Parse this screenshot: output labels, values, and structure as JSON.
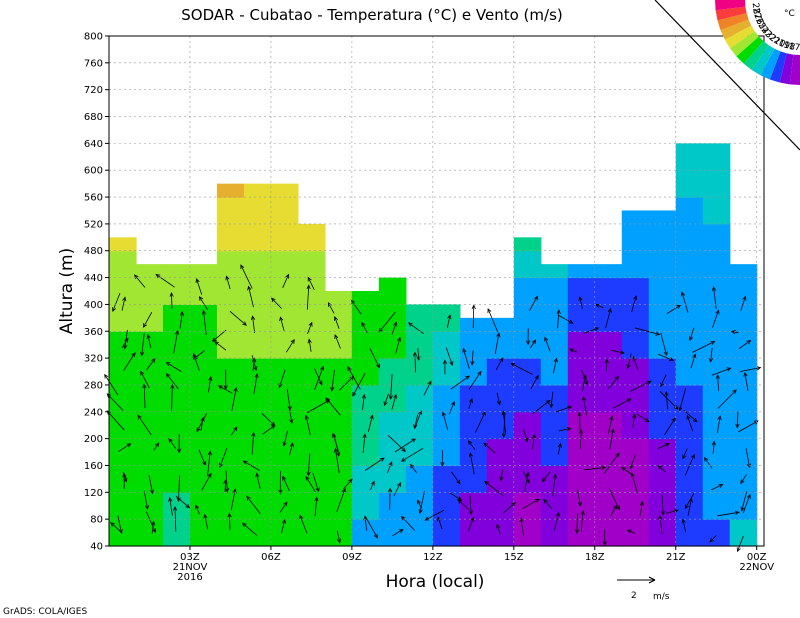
{
  "chart_data": {
    "type": "heatmap",
    "title": "SODAR - Cubatao - Temperatura (°C) e Vento (m/s)",
    "xlabel": "Hora (local)",
    "ylabel": "Altura (m)",
    "ylim": [
      40,
      800
    ],
    "yticks": [
      40,
      80,
      120,
      160,
      200,
      240,
      280,
      320,
      360,
      400,
      440,
      480,
      520,
      560,
      600,
      640,
      680,
      720,
      760,
      800
    ],
    "xlim": [
      0,
      31
    ],
    "xticks": [
      {
        "x": 3,
        "label": "03Z",
        "sub1": "21NOV",
        "sub2": "2016"
      },
      {
        "x": 6,
        "label": "06Z",
        "sub1": "",
        "sub2": ""
      },
      {
        "x": 9,
        "label": "09Z",
        "sub1": "",
        "sub2": ""
      },
      {
        "x": 12,
        "label": "12Z",
        "sub1": "",
        "sub2": ""
      },
      {
        "x": 15,
        "label": "15Z",
        "sub1": "",
        "sub2": ""
      },
      {
        "x": 18,
        "label": "18Z",
        "sub1": "",
        "sub2": ""
      },
      {
        "x": 21,
        "label": "21Z",
        "sub1": "",
        "sub2": ""
      },
      {
        "x": 24,
        "label": "00Z",
        "sub1": "22NOV",
        "sub2": ""
      }
    ],
    "colorbar": {
      "unit": "°C",
      "levels": [
        17,
        18,
        19,
        20,
        21,
        22,
        23,
        24,
        25,
        26,
        27,
        28
      ],
      "colors": [
        "#a000c8",
        "#8200dc",
        "#1e3cff",
        "#00a0ff",
        "#00c8c8",
        "#00d28c",
        "#00dc00",
        "#a0e632",
        "#e6dc32",
        "#e6af2d",
        "#f08228",
        "#fa3c3c",
        "#f00082"
      ]
    },
    "ceiling": [
      500,
      460,
      460,
      460,
      580,
      580,
      580,
      520,
      420,
      420,
      440,
      400,
      400,
      380,
      380,
      500,
      460,
      460,
      460,
      540,
      540,
      640,
      640,
      460
    ],
    "temperature_field": [
      {
        "x": 0.5,
        "z": [
          22.0,
          22.0,
          22.0,
          22.1,
          22.2,
          22.4,
          22.6,
          22.8,
          23.0,
          23.2,
          23.6,
          24.2,
          24.9
        ]
      },
      {
        "x": 1.5,
        "z": [
          22.5,
          22.6,
          22.4,
          22.0,
          22.1,
          22.4,
          22.6,
          22.8,
          23.0,
          23.1,
          23.6,
          24.3,
          25.0
        ]
      },
      {
        "x": 2.5,
        "z": [
          21.9,
          21.9,
          22.1,
          22.2,
          22.3,
          22.5,
          22.7,
          22.8,
          22.9,
          23.1,
          23.6,
          24.2,
          24.8
        ]
      },
      {
        "x": 3.5,
        "z": [
          22.3,
          22.3,
          22.4,
          22.5,
          22.6,
          22.6,
          22.7,
          22.8,
          22.9,
          23.0,
          23.4,
          24.2,
          24.8
        ]
      },
      {
        "x": 4.5,
        "z": [
          22.6,
          22.6,
          22.6,
          22.7,
          22.7,
          22.8,
          22.9,
          23.0,
          23.2,
          23.3,
          23.6,
          24.2,
          24.8,
          25.0,
          25.2,
          25.5
        ]
      },
      {
        "x": 5.5,
        "z": [
          22.7,
          22.7,
          22.7,
          22.7,
          22.8,
          22.8,
          22.9,
          23.0,
          23.2,
          23.4,
          23.7,
          24.2,
          24.6,
          24.8,
          25.0,
          25.2
        ]
      },
      {
        "x": 6.5,
        "z": [
          22.8,
          22.8,
          22.8,
          22.8,
          22.8,
          22.9,
          22.9,
          23.0,
          23.1,
          23.3,
          23.8,
          24.1,
          24.5,
          24.9,
          25.2,
          25.5
        ]
      },
      {
        "x": 7.5,
        "z": [
          22.7,
          22.7,
          22.8,
          22.8,
          22.8,
          22.9,
          22.9,
          23.0,
          23.2,
          23.4,
          23.8,
          24.3,
          24.8,
          25.0
        ]
      },
      {
        "x": 8.5,
        "z": [
          22.6,
          22.7,
          22.8,
          22.8,
          22.8,
          22.9,
          22.9,
          23.0,
          23.2,
          23.4,
          23.8,
          24.3
        ]
      },
      {
        "x": 9.5,
        "z": [
          19.8,
          20.2,
          20.6,
          21.0,
          21.4,
          21.8,
          22.1,
          22.4,
          22.6,
          22.9,
          23.2
        ]
      },
      {
        "x": 10.5,
        "z": [
          19.2,
          19.6,
          20.1,
          20.4,
          20.7,
          21.2,
          21.7,
          22.0,
          22.4,
          22.7,
          23.0
        ]
      },
      {
        "x": 11.5,
        "z": [
          19.2,
          19.0,
          19.5,
          20.0,
          20.5,
          20.9,
          21.3,
          21.6,
          21.9,
          22.1
        ]
      },
      {
        "x": 12.5,
        "z": [
          18.3,
          18.5,
          18.8,
          19.0,
          19.4,
          19.8,
          20.2,
          20.6,
          21.0,
          21.2
        ]
      },
      {
        "x": 13.5,
        "z": [
          17.6,
          17.8,
          18.0,
          18.3,
          18.6,
          18.9,
          19.3,
          19.6,
          19.9
        ]
      },
      {
        "x": 14.5,
        "z": [
          17.2,
          17.4,
          17.6,
          17.9,
          18.2,
          18.5,
          18.8,
          19.0,
          19.2
        ]
      },
      {
        "x": 15.5,
        "z": [
          16.4,
          16.8,
          17.1,
          17.5,
          17.8,
          18.1,
          18.5,
          19.0,
          19.3,
          19.7,
          20.2,
          21.0
        ]
      },
      {
        "x": 16.5,
        "z": [
          17.2,
          17.6,
          17.9,
          18.2,
          18.5,
          18.8,
          19.0,
          19.2,
          19.4,
          19.9,
          20.2
        ]
      },
      {
        "x": 17.5,
        "z": [
          16.0,
          16.2,
          16.5,
          16.6,
          16.9,
          17.3,
          17.6,
          17.9,
          18.2,
          18.8,
          19.0
        ]
      },
      {
        "x": 18.5,
        "z": [
          15.6,
          15.8,
          16.0,
          16.2,
          16.6,
          17.0,
          17.4,
          17.8,
          18.2,
          18.8,
          19.0
        ]
      },
      {
        "x": 19.5,
        "z": [
          16.0,
          16.1,
          16.4,
          16.6,
          17.0,
          17.4,
          17.8,
          18.1,
          18.4,
          18.7,
          19.0,
          19.3,
          19.5
        ]
      },
      {
        "x": 20.5,
        "z": [
          17.2,
          17.4,
          17.6,
          17.9,
          18.2,
          18.5,
          18.8,
          19.0,
          19.2,
          19.4,
          19.6,
          19.7,
          19.7
        ]
      },
      {
        "x": 21.5,
        "z": [
          18.0,
          18.1,
          18.3,
          18.5,
          18.7,
          18.9,
          19.0,
          19.1,
          19.2,
          19.3,
          19.4,
          19.6,
          19.8,
          20.0,
          20.2,
          20.4
        ]
      },
      {
        "x": 22.5,
        "z": [
          18.9,
          19.0,
          19.1,
          19.2,
          19.3,
          19.4,
          19.5,
          19.5,
          19.6,
          19.7,
          19.8,
          19.9,
          20.0,
          20.2,
          20.4,
          20.6
        ]
      },
      {
        "x": 23.5,
        "z": [
          20.2,
          19.8,
          19.6,
          19.5,
          19.4,
          19.3,
          19.3,
          19.3,
          19.3,
          19.3,
          19.4
        ]
      }
    ],
    "wind_reference": {
      "speed": 2,
      "unit": "m/s",
      "label": "2"
    },
    "credit": "GrADS: COLA/IGES"
  }
}
